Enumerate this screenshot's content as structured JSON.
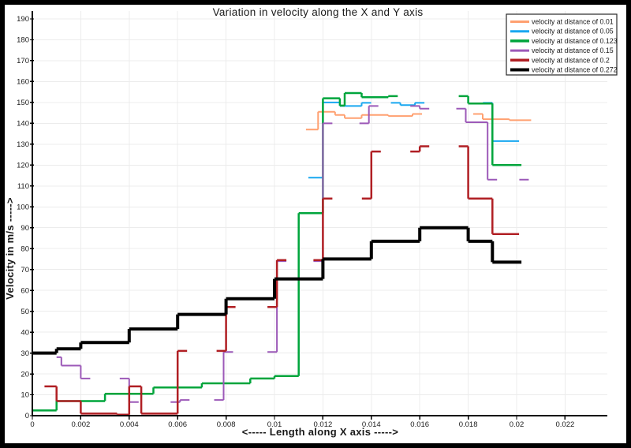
{
  "chart_data": {
    "type": "line",
    "subtype": "step",
    "title": "Variation in velocity along the X and Y axis",
    "xlabel": "<----- Length along X axis ----->",
    "ylabel": "Velocity in m/s  ----->",
    "xlim": [
      0,
      0.0237
    ],
    "ylim": [
      0,
      190
    ],
    "grid": true,
    "legend_position": "top-right",
    "xticks": [
      "0",
      "0.002",
      "0.004",
      "0.006",
      "0.008",
      "0.01",
      "0.012",
      "0.014",
      "0.016",
      "0.018",
      "0.02",
      "0.022"
    ],
    "yticks": [
      "0",
      "10",
      "20",
      "30",
      "40",
      "50",
      "60",
      "70",
      "80",
      "90",
      "100",
      "110",
      "120",
      "130",
      "140",
      "150",
      "160",
      "170",
      "180",
      "190"
    ],
    "series": [
      {
        "name": "velocity at distance of 0.01",
        "key": "0.01",
        "color": "#ffa070",
        "width": 2,
        "dash_threshold": 45,
        "x_end": 0.0206,
        "points": [
          [
            0.0113,
            137
          ],
          [
            0.0118,
            145.5
          ],
          [
            0.0125,
            144
          ],
          [
            0.0129,
            142.5
          ],
          [
            0.0136,
            144
          ],
          [
            0.0147,
            143.5
          ],
          [
            0.0157,
            144.5
          ],
          [
            0.0186,
            142
          ],
          [
            0.0197,
            141.5
          ]
        ]
      },
      {
        "name": "velocity at distance of 0.05",
        "key": "0.05",
        "color": "#18a7f0",
        "width": 2,
        "dash_threshold": 45,
        "x_end": 0.0201,
        "points": [
          [
            0.0114,
            114
          ],
          [
            0.012,
            150
          ],
          [
            0.0127,
            148.3
          ],
          [
            0.0136,
            149.8
          ],
          [
            0.0152,
            148.7
          ],
          [
            0.0158,
            149.8
          ],
          [
            0.019,
            131.5
          ]
        ]
      },
      {
        "name": "velocity at distance of 0.123",
        "key": "0.123",
        "color": "#00a53c",
        "width": 2.5,
        "dash_threshold": 70,
        "x_end": 0.0202,
        "points": [
          [
            0,
            2.5
          ],
          [
            0.001,
            7
          ],
          [
            0.003,
            10.5
          ],
          [
            0.005,
            13.5
          ],
          [
            0.007,
            15.5
          ],
          [
            0.009,
            17.8
          ],
          [
            0.01,
            19
          ],
          [
            0.011,
            97
          ],
          [
            0.012,
            152
          ],
          [
            0.0127,
            148.5
          ],
          [
            0.0129,
            154.5
          ],
          [
            0.0136,
            152.5
          ],
          [
            0.0147,
            153
          ],
          [
            0.018,
            149.5
          ],
          [
            0.019,
            120
          ]
        ]
      },
      {
        "name": "velocity at distance of 0.15",
        "key": "0.15",
        "color": "#9c59b8",
        "width": 2,
        "dash_threshold": 50,
        "x_end": 0.0205,
        "points": [
          [
            0.001,
            28
          ],
          [
            0.0012,
            24
          ],
          [
            0.002,
            17.8
          ],
          [
            0.004,
            6.5
          ],
          [
            0.0061,
            7.5
          ],
          [
            0.0079,
            30.5
          ],
          [
            0.0101,
            74
          ],
          [
            0.012,
            140
          ],
          [
            0.0139,
            148.3
          ],
          [
            0.016,
            147
          ],
          [
            0.0179,
            140.5
          ],
          [
            0.0188,
            113
          ]
        ]
      },
      {
        "name": "velocity at distance of 0.2",
        "key": "0.2",
        "color": "#b01f24",
        "width": 2.5,
        "dash_threshold": 50,
        "x_end": 0.0201,
        "points": [
          [
            0.0005,
            14
          ],
          [
            0.001,
            7
          ],
          [
            0.002,
            1
          ],
          [
            0.0035,
            0.5
          ],
          [
            0.004,
            14
          ],
          [
            0.0045,
            1
          ],
          [
            0.006,
            31
          ],
          [
            0.008,
            52
          ],
          [
            0.0101,
            74.5
          ],
          [
            0.012,
            104
          ],
          [
            0.014,
            126.5
          ],
          [
            0.016,
            129
          ],
          [
            0.018,
            104
          ],
          [
            0.019,
            87
          ]
        ]
      },
      {
        "name": "velocity at distance of 0.272",
        "key": "0.272",
        "color": "#000000",
        "width": 4,
        "dash_threshold": null,
        "x_end": 0.0202,
        "points": [
          [
            0,
            30
          ],
          [
            0.001,
            32
          ],
          [
            0.002,
            35
          ],
          [
            0.004,
            41.5
          ],
          [
            0.006,
            48.5
          ],
          [
            0.008,
            56
          ],
          [
            0.01,
            65.5
          ],
          [
            0.012,
            75
          ],
          [
            0.014,
            83.5
          ],
          [
            0.016,
            90
          ],
          [
            0.018,
            83.5
          ],
          [
            0.019,
            73.5
          ]
        ]
      }
    ],
    "colors": {
      "grid": "#ececec",
      "axis": "#000000",
      "legend_border": "#2a2a2a",
      "background": "#ffffff"
    }
  }
}
